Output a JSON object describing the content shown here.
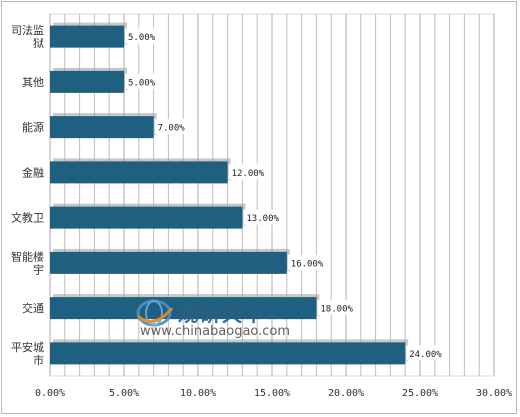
{
  "chart_data": {
    "type": "bar",
    "orientation": "horizontal",
    "categories": [
      "司法监狱",
      "其他",
      "能源",
      "金融",
      "文教卫",
      "智能楼宇",
      "交通",
      "平安城市"
    ],
    "category_lines": [
      [
        "司法监",
        "狱"
      ],
      [
        "其他"
      ],
      [
        "能源"
      ],
      [
        "金融"
      ],
      [
        "文教卫"
      ],
      [
        "智能楼",
        "宇"
      ],
      [
        "交通"
      ],
      [
        "平安城",
        "市"
      ]
    ],
    "values": [
      5.0,
      5.0,
      7.0,
      12.0,
      13.0,
      16.0,
      18.0,
      24.0
    ],
    "data_labels": [
      "5.00%",
      "5.00%",
      "7.00%",
      "12.00%",
      "13.00%",
      "16.00%",
      "18.00%",
      "24.00%"
    ],
    "xlim": [
      0,
      30
    ],
    "xticks": [
      0,
      5,
      10,
      15,
      20,
      25,
      30
    ],
    "xtick_labels": [
      "0.00%",
      "5.00%",
      "10.00%",
      "15.00%",
      "20.00%",
      "25.00%",
      "30.00%"
    ],
    "bar_color": "#1f5f7f",
    "grid": "vertical",
    "grid_color": "#c9b8c2",
    "legend": "none"
  },
  "watermark": {
    "brand": "观研天下",
    "url": "www.chinabaogao.com"
  }
}
